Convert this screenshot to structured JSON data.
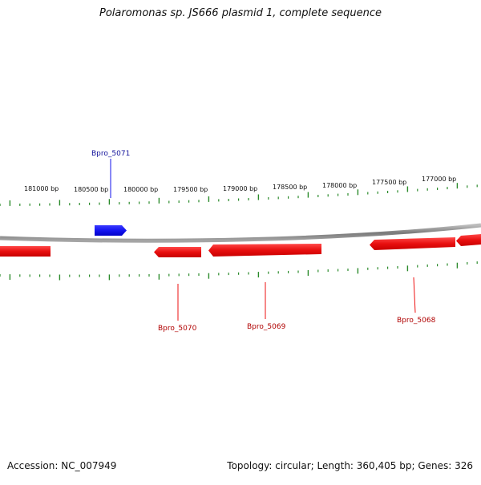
{
  "title": "Polaromonas sp. JS666 plasmid 1, complete sequence",
  "footer": {
    "accession": "Accession: NC_007949",
    "summary": "Topology: circular; Length: 360,405 bp; Genes: 326"
  },
  "map": {
    "backbone_color": "#8a8a8a",
    "forward_color": "#1010ee",
    "reverse_color": "#ee1111",
    "tick_color": "#2a8a2a",
    "position_labels": [
      {
        "bp": 181000,
        "text": "181000 bp"
      },
      {
        "bp": 180500,
        "text": "180500 bp"
      },
      {
        "bp": 180000,
        "text": "180000 bp"
      },
      {
        "bp": 179500,
        "text": "179500 bp"
      },
      {
        "bp": 179000,
        "text": "179000 bp"
      },
      {
        "bp": 178500,
        "text": "178500 bp"
      },
      {
        "bp": 178000,
        "text": "178000 bp"
      },
      {
        "bp": 177500,
        "text": "177500 bp"
      },
      {
        "bp": 177000,
        "text": "177000 bp"
      }
    ],
    "genes": [
      {
        "name": "Bpro_5071",
        "strand": "forward",
        "labeled": true
      },
      {
        "name": "Bpro_5070",
        "strand": "reverse",
        "labeled": true
      },
      {
        "name": "Bpro_5069",
        "strand": "reverse",
        "labeled": true
      },
      {
        "name": "Bpro_5068",
        "strand": "reverse",
        "labeled": true
      },
      {
        "name": "",
        "strand": "reverse",
        "labeled": false
      },
      {
        "name": "",
        "strand": "reverse",
        "labeled": false
      }
    ]
  }
}
